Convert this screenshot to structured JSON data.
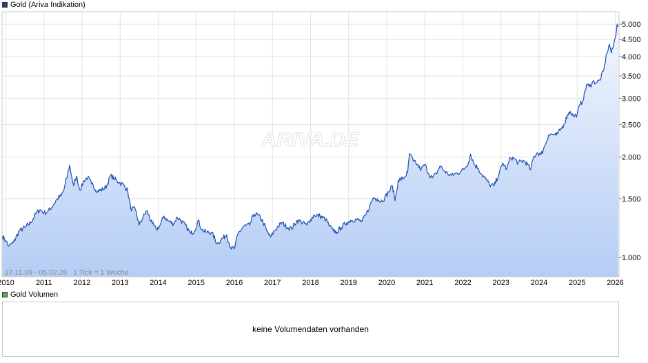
{
  "price_legend": {
    "label": "Gold (Ariva Indikation)",
    "color": "#1f3f8f"
  },
  "watermark": "ARIVA.DE",
  "range_info": "27.11.09 - 05.02.26   1 Tick = 1 Woche",
  "volume_legend": {
    "label": "Gold Volumen",
    "color": "#4caf50"
  },
  "volume_message": "keine Volumendaten vorhanden",
  "chart_data": {
    "type": "area",
    "title": "Gold (Ariva Indikation)",
    "y_scale": "log",
    "ylim": [
      875,
      5450
    ],
    "xlim": [
      2009.9,
      2026.1
    ],
    "grid": true,
    "line_color": "#1f4fb0",
    "fill_top_color": "#f2f6fd",
    "fill_bottom_color": "#b5cdf5",
    "x_ticks": [
      {
        "x": 2010,
        "label": "2010"
      },
      {
        "x": 2011,
        "label": "2011"
      },
      {
        "x": 2012,
        "label": "2012"
      },
      {
        "x": 2013,
        "label": "2013"
      },
      {
        "x": 2014,
        "label": "2014"
      },
      {
        "x": 2015,
        "label": "2015"
      },
      {
        "x": 2016,
        "label": "2016"
      },
      {
        "x": 2017,
        "label": "2017"
      },
      {
        "x": 2018,
        "label": "2018"
      },
      {
        "x": 2019,
        "label": "2019"
      },
      {
        "x": 2020,
        "label": "2020"
      },
      {
        "x": 2021,
        "label": "2021"
      },
      {
        "x": 2022,
        "label": "2022"
      },
      {
        "x": 2023,
        "label": "2023"
      },
      {
        "x": 2024,
        "label": "2024"
      },
      {
        "x": 2025,
        "label": "2025"
      },
      {
        "x": 2026,
        "label": "2026"
      }
    ],
    "y_ticks": [
      {
        "value": 1000,
        "label": "1.000"
      },
      {
        "value": 1500,
        "label": "1.500"
      },
      {
        "value": 2000,
        "label": "2.000"
      },
      {
        "value": 2500,
        "label": "2.500"
      },
      {
        "value": 3000,
        "label": "3.000"
      },
      {
        "value": 3500,
        "label": "3.500"
      },
      {
        "value": 4000,
        "label": "4.000"
      },
      {
        "value": 4500,
        "label": "4.500"
      },
      {
        "value": 5000,
        "label": "5.000"
      }
    ],
    "series": [
      {
        "values": [
          [
            2009.91,
            1160
          ],
          [
            2010.0,
            1120
          ],
          [
            2010.08,
            1080
          ],
          [
            2010.2,
            1110
          ],
          [
            2010.35,
            1200
          ],
          [
            2010.5,
            1230
          ],
          [
            2010.65,
            1270
          ],
          [
            2010.8,
            1360
          ],
          [
            2010.9,
            1390
          ],
          [
            2011.0,
            1360
          ],
          [
            2011.1,
            1370
          ],
          [
            2011.25,
            1440
          ],
          [
            2011.35,
            1500
          ],
          [
            2011.45,
            1530
          ],
          [
            2011.52,
            1590
          ],
          [
            2011.62,
            1770
          ],
          [
            2011.67,
            1890
          ],
          [
            2011.72,
            1770
          ],
          [
            2011.78,
            1640
          ],
          [
            2011.85,
            1750
          ],
          [
            2011.95,
            1590
          ],
          [
            2012.05,
            1700
          ],
          [
            2012.15,
            1740
          ],
          [
            2012.25,
            1660
          ],
          [
            2012.4,
            1580
          ],
          [
            2012.55,
            1600
          ],
          [
            2012.65,
            1640
          ],
          [
            2012.75,
            1760
          ],
          [
            2012.85,
            1720
          ],
          [
            2013.0,
            1670
          ],
          [
            2013.1,
            1650
          ],
          [
            2013.2,
            1580
          ],
          [
            2013.28,
            1400
          ],
          [
            2013.4,
            1390
          ],
          [
            2013.5,
            1250
          ],
          [
            2013.6,
            1320
          ],
          [
            2013.7,
            1380
          ],
          [
            2013.85,
            1260
          ],
          [
            2013.95,
            1210
          ],
          [
            2014.05,
            1250
          ],
          [
            2014.15,
            1330
          ],
          [
            2014.25,
            1290
          ],
          [
            2014.4,
            1260
          ],
          [
            2014.5,
            1320
          ],
          [
            2014.6,
            1290
          ],
          [
            2014.75,
            1230
          ],
          [
            2014.85,
            1180
          ],
          [
            2014.95,
            1200
          ],
          [
            2015.05,
            1290
          ],
          [
            2015.15,
            1210
          ],
          [
            2015.25,
            1190
          ],
          [
            2015.4,
            1190
          ],
          [
            2015.55,
            1100
          ],
          [
            2015.65,
            1130
          ],
          [
            2015.8,
            1170
          ],
          [
            2015.9,
            1070
          ],
          [
            2016.0,
            1060
          ],
          [
            2016.1,
            1180
          ],
          [
            2016.25,
            1240
          ],
          [
            2016.4,
            1250
          ],
          [
            2016.52,
            1350
          ],
          [
            2016.62,
            1340
          ],
          [
            2016.75,
            1280
          ],
          [
            2016.85,
            1200
          ],
          [
            2016.95,
            1150
          ],
          [
            2017.05,
            1200
          ],
          [
            2017.15,
            1240
          ],
          [
            2017.25,
            1270
          ],
          [
            2017.4,
            1230
          ],
          [
            2017.5,
            1220
          ],
          [
            2017.65,
            1290
          ],
          [
            2017.75,
            1280
          ],
          [
            2017.9,
            1250
          ],
          [
            2018.0,
            1300
          ],
          [
            2018.1,
            1340
          ],
          [
            2018.25,
            1330
          ],
          [
            2018.4,
            1300
          ],
          [
            2018.5,
            1240
          ],
          [
            2018.6,
            1200
          ],
          [
            2018.7,
            1190
          ],
          [
            2018.8,
            1230
          ],
          [
            2018.95,
            1270
          ],
          [
            2019.05,
            1290
          ],
          [
            2019.2,
            1300
          ],
          [
            2019.35,
            1280
          ],
          [
            2019.45,
            1340
          ],
          [
            2019.55,
            1420
          ],
          [
            2019.65,
            1510
          ],
          [
            2019.75,
            1500
          ],
          [
            2019.85,
            1470
          ],
          [
            2019.95,
            1510
          ],
          [
            2020.05,
            1570
          ],
          [
            2020.15,
            1640
          ],
          [
            2020.22,
            1480
          ],
          [
            2020.3,
            1700
          ],
          [
            2020.45,
            1730
          ],
          [
            2020.55,
            1800
          ],
          [
            2020.6,
            2050
          ],
          [
            2020.7,
            1940
          ],
          [
            2020.8,
            1900
          ],
          [
            2020.9,
            1830
          ],
          [
            2021.0,
            1900
          ],
          [
            2021.1,
            1780
          ],
          [
            2021.2,
            1730
          ],
          [
            2021.3,
            1780
          ],
          [
            2021.4,
            1880
          ],
          [
            2021.5,
            1820
          ],
          [
            2021.6,
            1780
          ],
          [
            2021.7,
            1760
          ],
          [
            2021.85,
            1790
          ],
          [
            2021.95,
            1810
          ],
          [
            2022.05,
            1850
          ],
          [
            2022.15,
            1930
          ],
          [
            2022.2,
            2040
          ],
          [
            2022.3,
            1900
          ],
          [
            2022.4,
            1850
          ],
          [
            2022.5,
            1770
          ],
          [
            2022.6,
            1720
          ],
          [
            2022.7,
            1650
          ],
          [
            2022.82,
            1640
          ],
          [
            2022.95,
            1780
          ],
          [
            2023.05,
            1920
          ],
          [
            2023.15,
            1840
          ],
          [
            2023.25,
            1990
          ],
          [
            2023.35,
            1980
          ],
          [
            2023.45,
            1920
          ],
          [
            2023.6,
            1950
          ],
          [
            2023.7,
            1900
          ],
          [
            2023.78,
            1830
          ],
          [
            2023.85,
            1990
          ],
          [
            2023.95,
            2060
          ],
          [
            2024.05,
            2030
          ],
          [
            2024.15,
            2160
          ],
          [
            2024.25,
            2330
          ],
          [
            2024.35,
            2340
          ],
          [
            2024.45,
            2320
          ],
          [
            2024.55,
            2400
          ],
          [
            2024.65,
            2500
          ],
          [
            2024.75,
            2680
          ],
          [
            2024.82,
            2740
          ],
          [
            2024.9,
            2650
          ],
          [
            2025.0,
            2680
          ],
          [
            2025.08,
            2880
          ],
          [
            2025.15,
            2950
          ],
          [
            2025.25,
            3300
          ],
          [
            2025.32,
            3250
          ],
          [
            2025.42,
            3370
          ],
          [
            2025.5,
            3340
          ],
          [
            2025.6,
            3400
          ],
          [
            2025.7,
            3650
          ],
          [
            2025.78,
            4100
          ],
          [
            2025.85,
            4350
          ],
          [
            2025.9,
            4100
          ],
          [
            2025.95,
            4300
          ],
          [
            2026.0,
            4550
          ],
          [
            2026.05,
            5000
          ],
          [
            2026.08,
            4950
          ]
        ]
      }
    ]
  }
}
